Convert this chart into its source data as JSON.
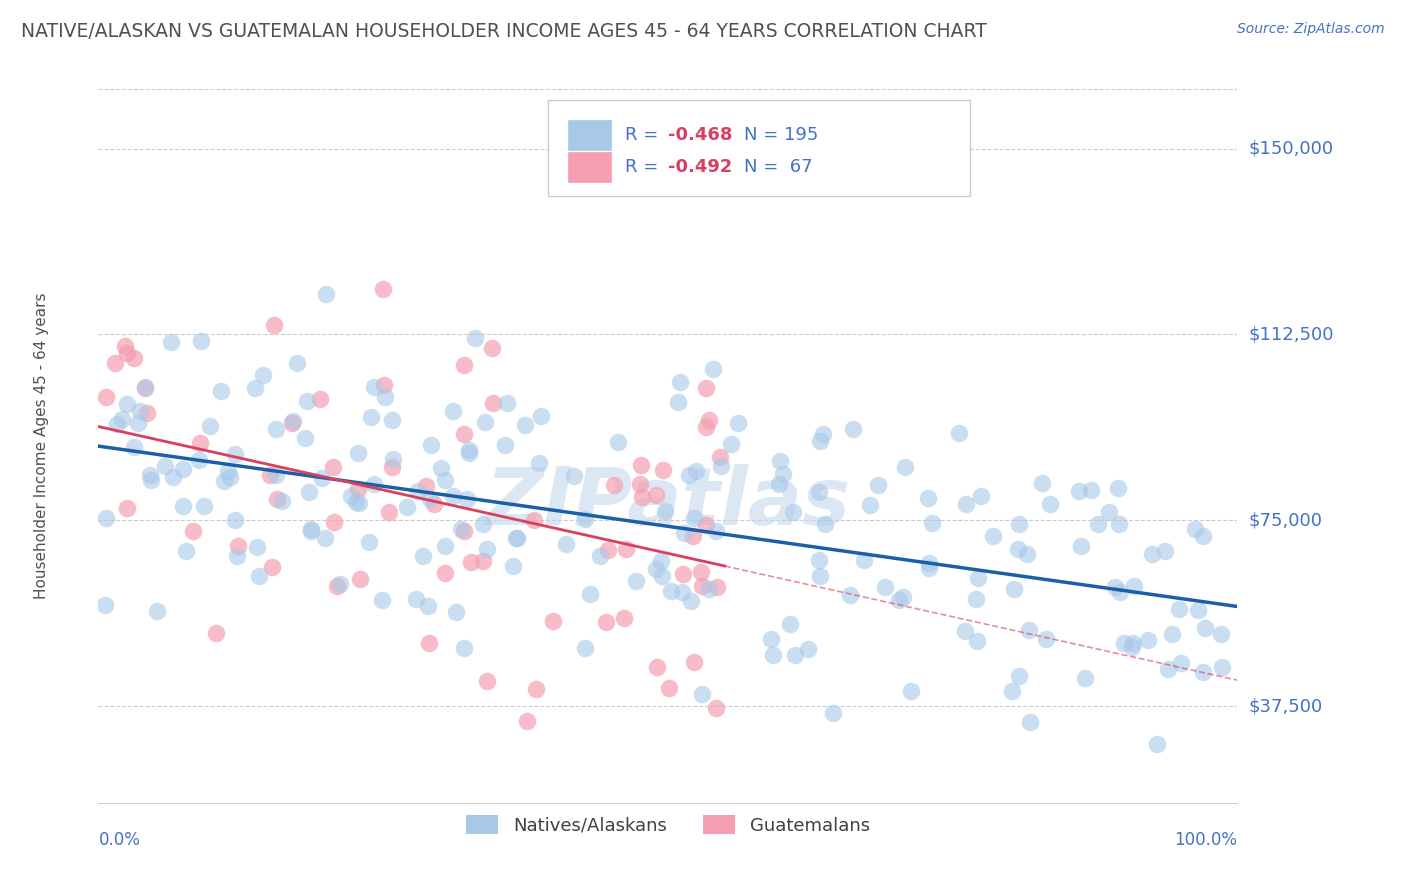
{
  "title": "NATIVE/ALASKAN VS GUATEMALAN HOUSEHOLDER INCOME AGES 45 - 64 YEARS CORRELATION CHART",
  "source": "Source: ZipAtlas.com",
  "ylabel": "Householder Income Ages 45 - 64 years",
  "xlim": [
    0,
    100
  ],
  "ylim": [
    18000,
    162000
  ],
  "yticks": [
    37500,
    75000,
    112500,
    150000
  ],
  "ytick_labels": [
    "$37,500",
    "$75,000",
    "$112,500",
    "$150,000"
  ],
  "xtick_labels": [
    "0.0%",
    "100.0%"
  ],
  "background_color": "#ffffff",
  "grid_color": "#cccccc",
  "blue_scatter_color": "#a8c8e8",
  "pink_scatter_color": "#f4a0b0",
  "blue_line_color": "#1a5fa8",
  "pink_line_color": "#d94060",
  "axis_label_color": "#4472c4",
  "title_color": "#505050",
  "legend_text_color": "#4472c4",
  "legend_R1_val": "-0.468",
  "legend_N1_val": "195",
  "legend_R2_val": "-0.492",
  "legend_N2_val": " 67",
  "series1_label": "Natives/Alaskans",
  "series2_label": "Guatemalans",
  "R1": -0.468,
  "N1": 195,
  "R2": -0.492,
  "N2": 67,
  "seed": 42,
  "watermark": "ZIPatlas",
  "watermark_color": "#c0d4ec"
}
